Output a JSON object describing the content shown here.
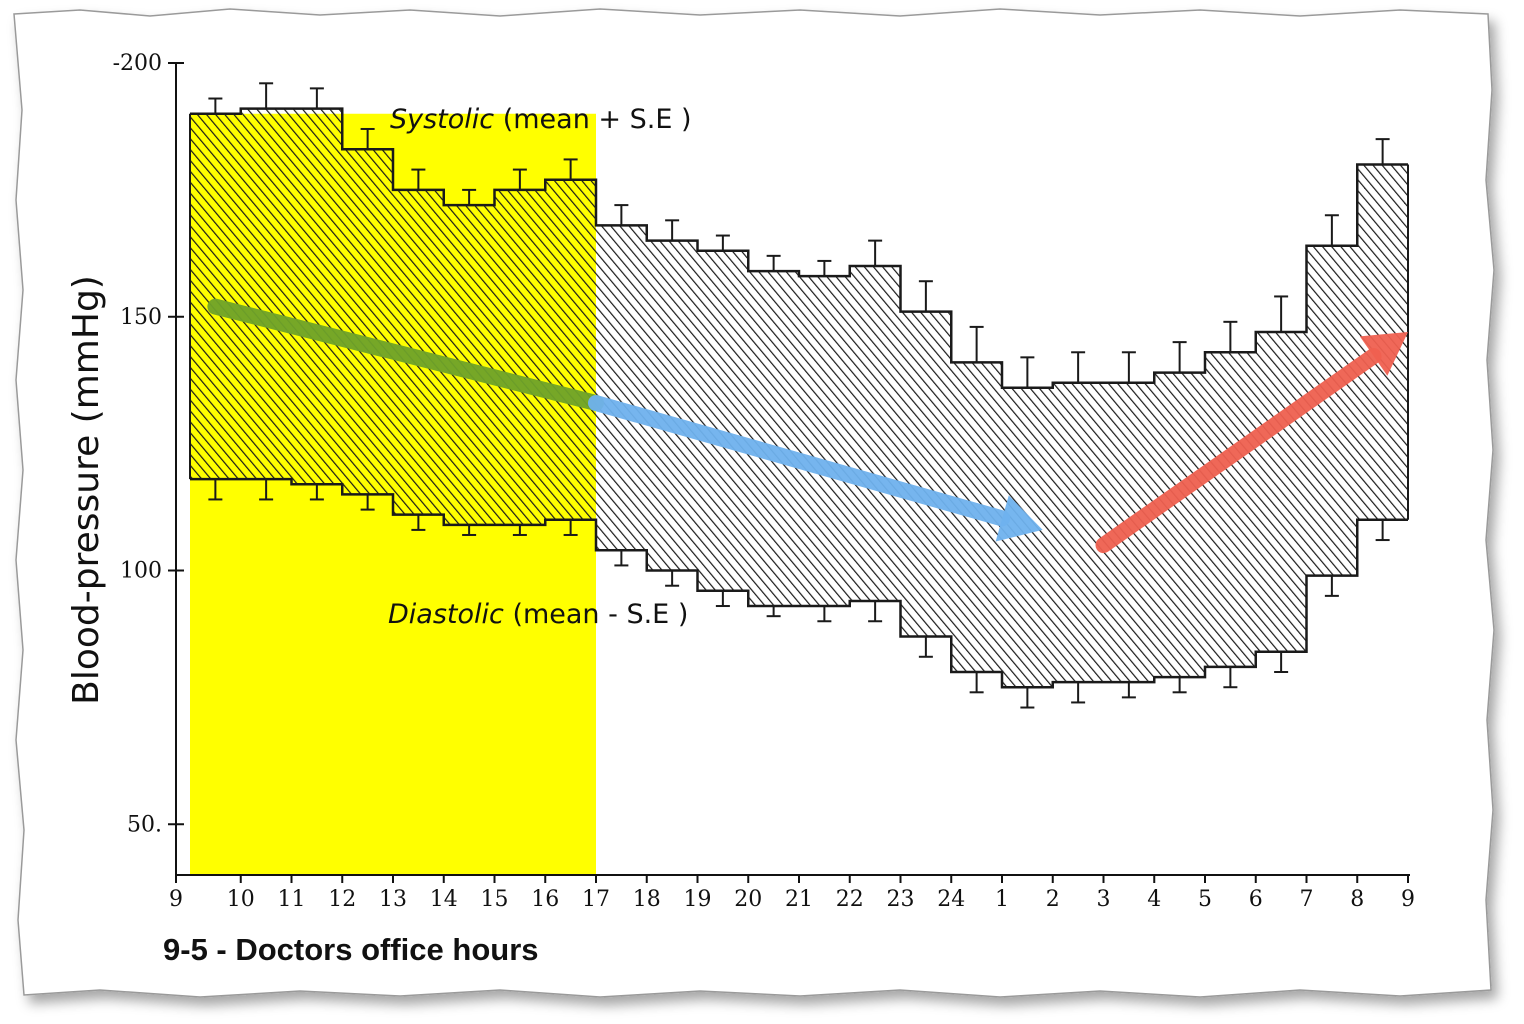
{
  "chart_data": {
    "type": "area",
    "ylabel": "Blood-pressure (mmHg)",
    "ylim": [
      40,
      200
    ],
    "y_ticks": [
      "-200",
      "150",
      "100",
      "50."
    ],
    "y_tick_values": [
      200,
      150,
      100,
      50
    ],
    "x_tick_labels": [
      "9",
      "10",
      "11",
      "12",
      "13",
      "14",
      "15",
      "16",
      "17",
      "18",
      "19",
      "20",
      "21",
      "22",
      "23",
      "24",
      "1",
      "2",
      "3",
      "4",
      "5",
      "6",
      "7",
      "8",
      "9"
    ],
    "caption": "9-5 - Doctors office hours",
    "highlight_range_hours": [
      0,
      8
    ],
    "series": [
      {
        "name": "Systolic",
        "annotation_main": "Systolic",
        "annotation_rest": " (mean + S.E )",
        "values": [
          190,
          191,
          191,
          183,
          175,
          172,
          175,
          177,
          168,
          165,
          163,
          159,
          158,
          160,
          151,
          141,
          136,
          137,
          137,
          139,
          143,
          147,
          164,
          180
        ],
        "error": [
          3,
          5,
          4,
          4,
          4,
          3,
          4,
          4,
          4,
          4,
          3,
          3,
          3,
          5,
          6,
          7,
          6,
          6,
          6,
          6,
          6,
          7,
          6,
          5
        ]
      },
      {
        "name": "Diastolic",
        "annotation_main": "Diastolic",
        "annotation_rest": " (mean - S.E )",
        "values": [
          118,
          118,
          117,
          115,
          111,
          109,
          109,
          110,
          104,
          100,
          96,
          93,
          93,
          94,
          87,
          80,
          77,
          78,
          78,
          79,
          81,
          84,
          99,
          110
        ],
        "error": [
          4,
          4,
          3,
          3,
          3,
          2,
          2,
          3,
          3,
          3,
          3,
          2,
          3,
          4,
          4,
          4,
          4,
          4,
          3,
          3,
          4,
          4,
          4,
          4
        ]
      }
    ],
    "trend_arrows": [
      {
        "name": "morning-decline",
        "color": "#6fa32a",
        "from": [
          0.5,
          152
        ],
        "to": [
          8,
          133
        ]
      },
      {
        "name": "evening-decline",
        "color": "#6fb2ee",
        "from": [
          8,
          133
        ],
        "to": [
          16.8,
          108
        ]
      },
      {
        "name": "night-rise",
        "color": "#ef6050",
        "from": [
          18,
          105
        ],
        "to": [
          24,
          147
        ]
      }
    ],
    "colors": {
      "highlight": "#ffff00",
      "stroke": "#1a1a1a",
      "hatch": "#1a1a1a"
    }
  }
}
